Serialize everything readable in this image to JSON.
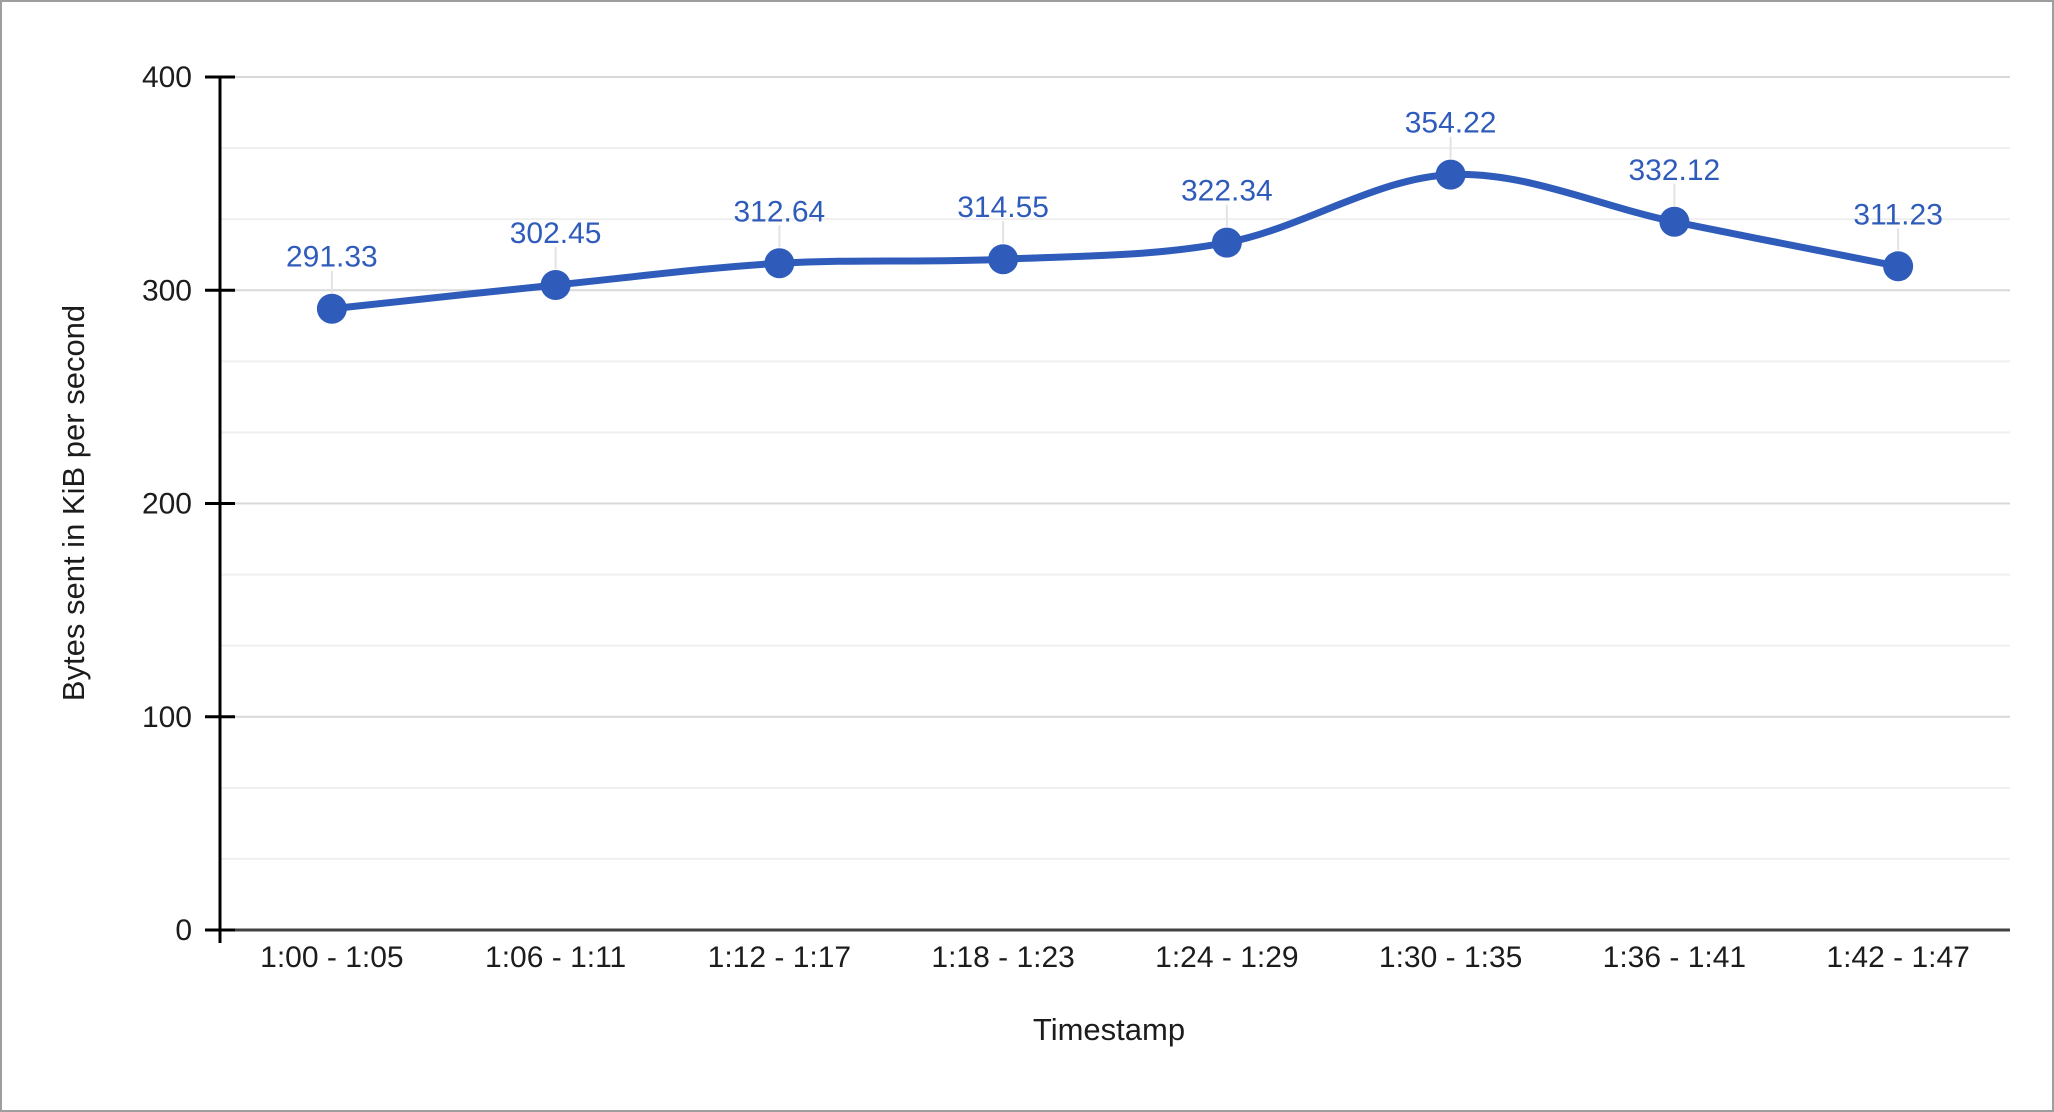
{
  "chart_data": {
    "type": "line",
    "smooth": true,
    "categories": [
      "1:00 - 1:05",
      "1:06 - 1:11",
      "1:12 - 1:17",
      "1:18 - 1:23",
      "1:24 - 1:29",
      "1:30 - 1:35",
      "1:36 - 1:41",
      "1:42 - 1:47"
    ],
    "series": [
      {
        "values": [
          291.33,
          302.45,
          312.64,
          314.55,
          322.34,
          354.22,
          332.12,
          311.23
        ],
        "point_labels": [
          "291.33",
          "302.45",
          "312.64",
          "314.55",
          "322.34",
          "354.22",
          "332.12",
          "311.23"
        ],
        "color": "#2F5CBB"
      }
    ],
    "xlabel": "Timestamp",
    "ylabel": "Bytes sent in KiB per second",
    "ylim": [
      0,
      400
    ],
    "yticks": [
      0,
      100,
      200,
      300,
      400
    ],
    "grid": {
      "major": true,
      "minors_per_interval": 2
    },
    "legend": "none",
    "data_labels": true
  },
  "style": {
    "series_color": "#2F5CBB",
    "major_grid_color": "#d9d9d9",
    "minor_grid_color": "#efefef",
    "axis_color": "#000000",
    "baseline_color": "#424242",
    "stem_color": "#e3e3e3",
    "text_color": "#1c1c1c",
    "background": "#ffffff",
    "frame_border_color": "#9e9e9e"
  }
}
